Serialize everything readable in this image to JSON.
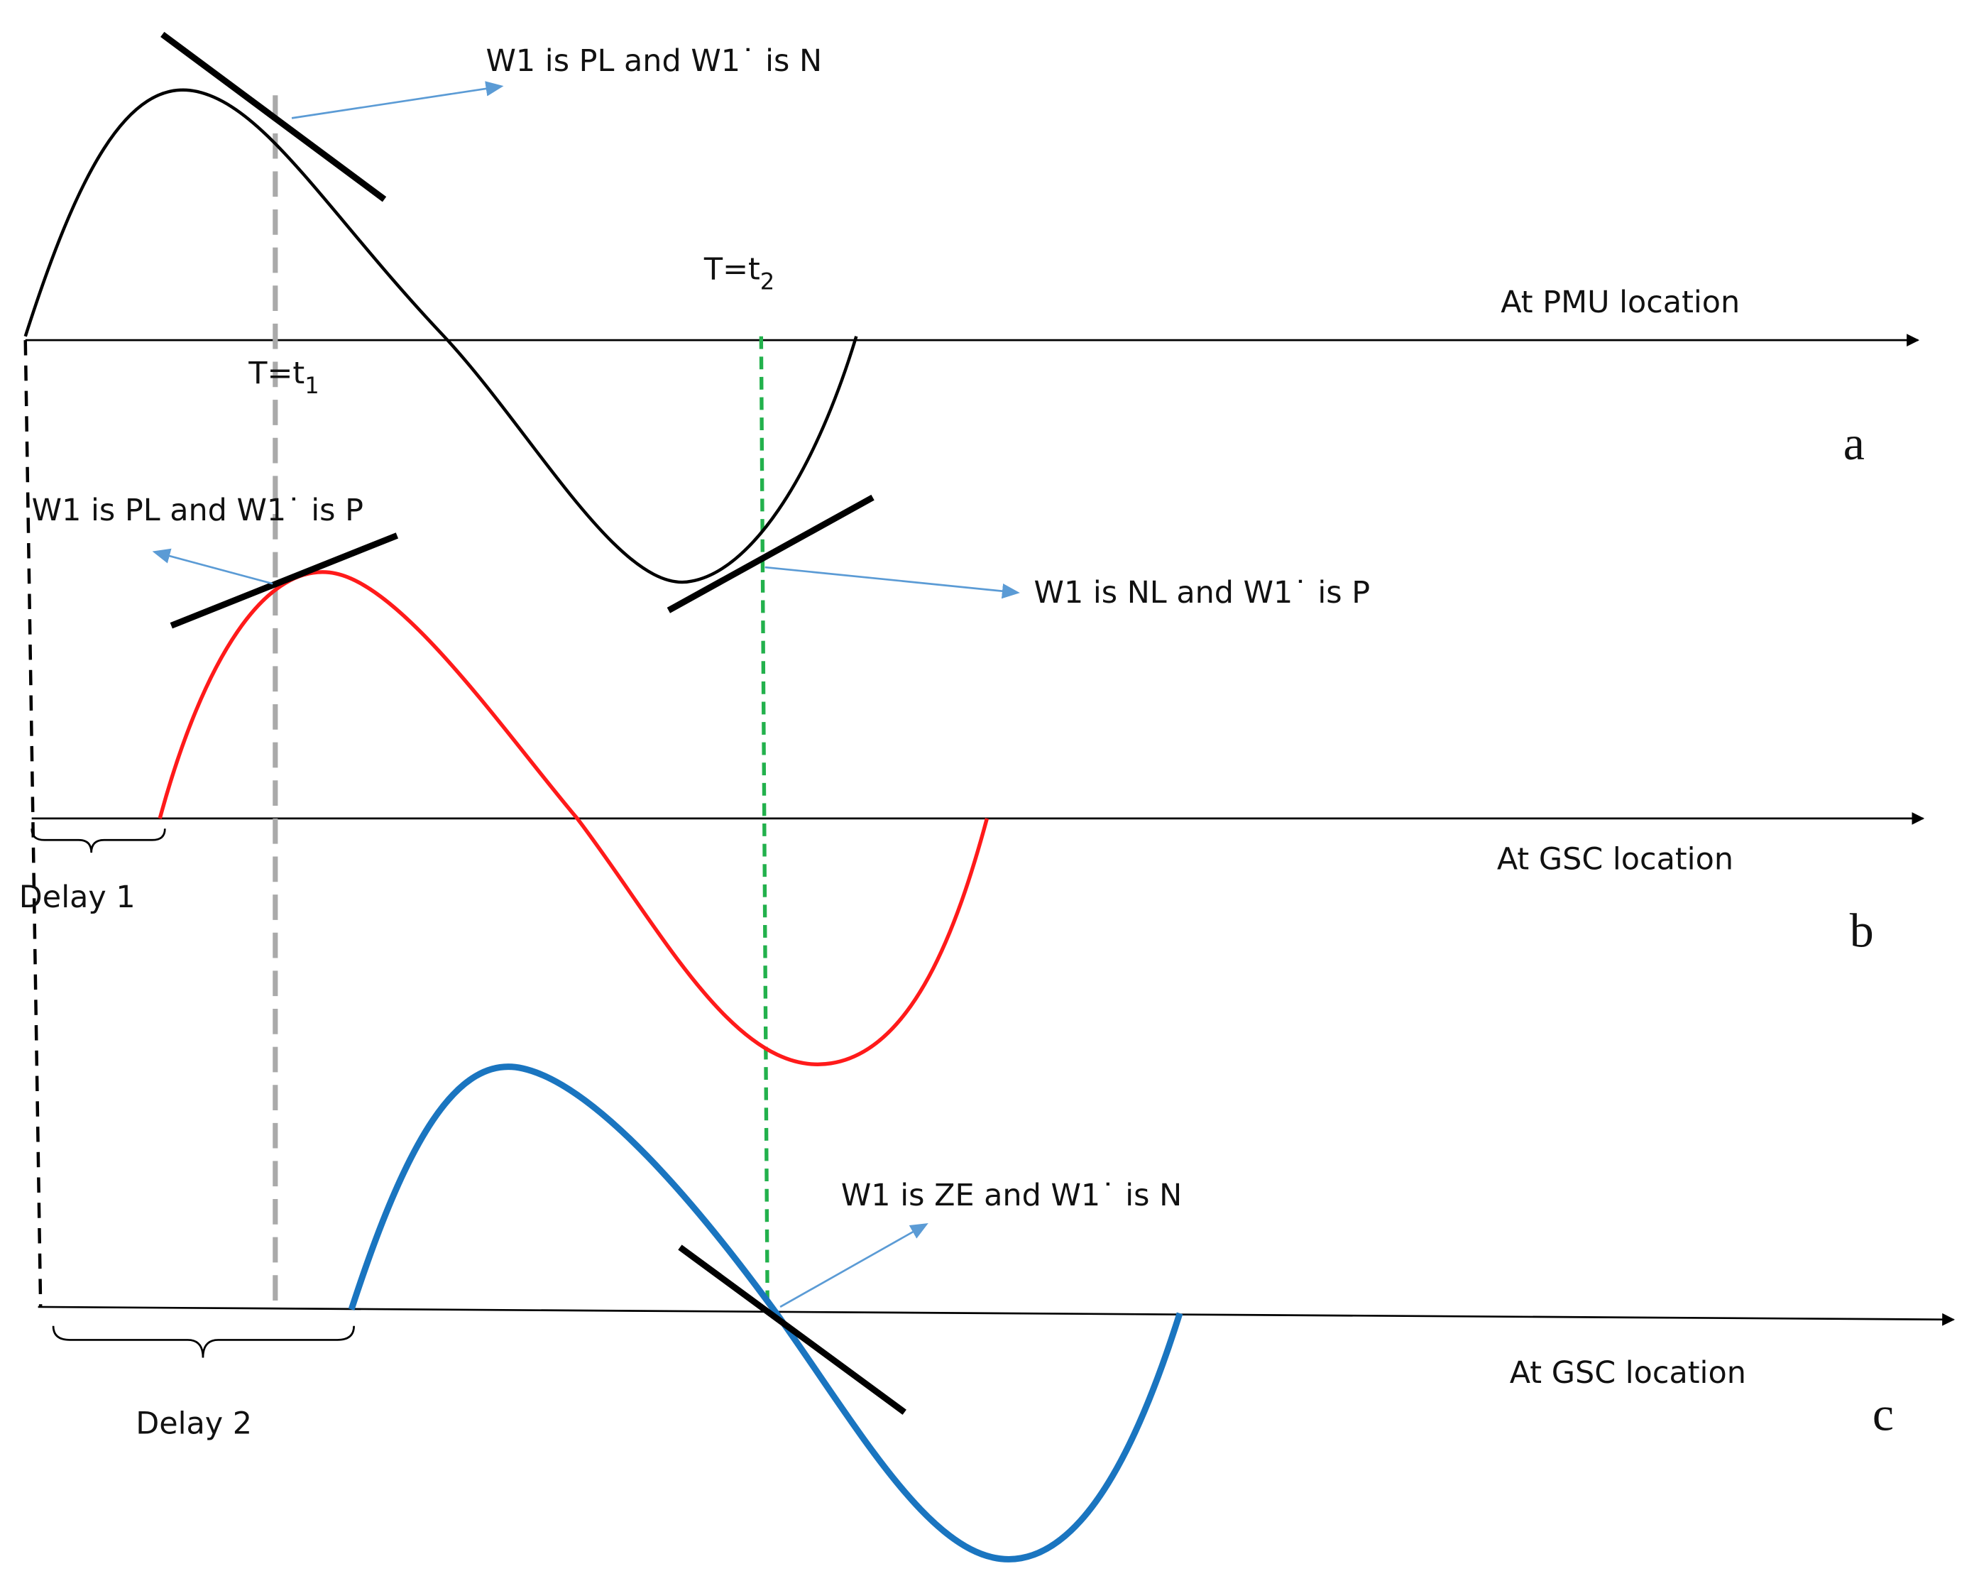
{
  "panels": [
    {
      "label": "a",
      "location": "At PMU location"
    },
    {
      "label": "b",
      "location": "At GSC location"
    },
    {
      "label": "c",
      "location": "At GSC location"
    }
  ],
  "annotations": [
    "W1 is PL and W1˙ is N",
    "W1 is PL and W1˙ is P",
    "W1 is NL and W1˙ is P",
    "W1 is ZE and W1˙ is N"
  ],
  "time_markers": [
    {
      "main": "T=t",
      "sub": "1"
    },
    {
      "main": "T=t",
      "sub": "2"
    }
  ],
  "delays": [
    "Delay 1",
    "Delay 2"
  ]
}
